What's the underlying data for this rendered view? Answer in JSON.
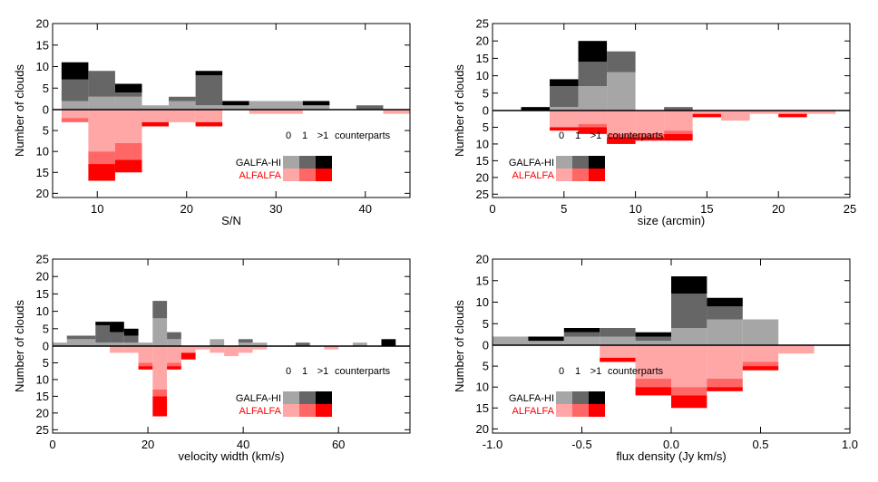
{
  "colors": {
    "galfa": [
      "#a6a6a6",
      "#666666",
      "#000000"
    ],
    "alfalfa": [
      "#ffa6a6",
      "#ff6666",
      "#ff0000"
    ],
    "alfalfa_label": "#ff0000"
  },
  "legend": {
    "header": [
      "0",
      "1",
      ">1"
    ],
    "counterparts": "counterparts",
    "galfa": "GALFA-HI",
    "alfalfa": "ALFALFA"
  },
  "chart_data": [
    {
      "type": "bar",
      "name": "sn",
      "xlabel": "S/N",
      "ylabel": "Number of clouds",
      "xlim": [
        5,
        45
      ],
      "xticks": [
        10,
        20,
        30,
        40
      ],
      "ylim_up": [
        0,
        20
      ],
      "ylim_down": [
        0,
        21
      ],
      "yticks_up": [
        5,
        10,
        15,
        20
      ],
      "yticks_down": [
        5,
        10,
        15,
        20
      ],
      "galfa_bins": [
        [
          6,
          9,
          [
            2,
            5,
            4
          ]
        ],
        [
          9,
          12,
          [
            3,
            6,
            0
          ]
        ],
        [
          12,
          15,
          [
            3,
            1,
            2
          ]
        ],
        [
          15,
          18,
          [
            1,
            0,
            0
          ]
        ],
        [
          18,
          21,
          [
            2,
            1,
            0
          ]
        ],
        [
          21,
          24,
          [
            1,
            7,
            1
          ]
        ],
        [
          24,
          27,
          [
            1,
            0,
            1
          ]
        ],
        [
          27,
          33,
          [
            2,
            0,
            0
          ]
        ],
        [
          33,
          36,
          [
            1,
            0,
            1
          ]
        ],
        [
          36,
          39,
          [
            0,
            0,
            0
          ]
        ],
        [
          39,
          42,
          [
            0,
            1,
            0
          ]
        ],
        [
          42,
          45,
          [
            0,
            0,
            0
          ]
        ]
      ],
      "alfalfa_bins": [
        [
          6,
          9,
          [
            2,
            1,
            0
          ]
        ],
        [
          9,
          12,
          [
            10,
            3,
            4
          ]
        ],
        [
          12,
          15,
          [
            8,
            4,
            3
          ]
        ],
        [
          15,
          18,
          [
            3,
            0,
            1
          ]
        ],
        [
          18,
          21,
          [
            3,
            0,
            0
          ]
        ],
        [
          21,
          24,
          [
            3,
            0,
            1
          ]
        ],
        [
          24,
          27,
          [
            0,
            0,
            0
          ]
        ],
        [
          27,
          33,
          [
            1,
            0,
            0
          ]
        ],
        [
          33,
          36,
          [
            0,
            0,
            0
          ]
        ],
        [
          36,
          39,
          [
            0,
            0,
            0
          ]
        ],
        [
          39,
          42,
          [
            0,
            0,
            0
          ]
        ],
        [
          42,
          45,
          [
            1,
            0,
            0
          ]
        ]
      ]
    },
    {
      "type": "bar",
      "name": "size",
      "xlabel": "size (arcmin)",
      "ylabel": "Number of clouds",
      "xlim": [
        0,
        25
      ],
      "xticks": [
        0,
        5,
        10,
        15,
        20,
        25
      ],
      "ylim_up": [
        0,
        25
      ],
      "ylim_down": [
        0,
        26
      ],
      "yticks_up": [
        5,
        10,
        15,
        20,
        25
      ],
      "yticks_down": [
        5,
        10,
        15,
        20,
        25
      ],
      "galfa_bins": [
        [
          2,
          4,
          [
            0,
            0,
            1
          ]
        ],
        [
          4,
          6,
          [
            1,
            6,
            2
          ]
        ],
        [
          6,
          8,
          [
            7,
            7,
            6
          ]
        ],
        [
          8,
          10,
          [
            11,
            6,
            0
          ]
        ],
        [
          12,
          14,
          [
            0,
            1,
            0
          ]
        ]
      ],
      "alfalfa_bins": [
        [
          4,
          6,
          [
            5,
            0,
            1
          ]
        ],
        [
          6,
          8,
          [
            4,
            1,
            2
          ]
        ],
        [
          8,
          10,
          [
            7,
            1,
            2
          ]
        ],
        [
          10,
          12,
          [
            7,
            1,
            1
          ]
        ],
        [
          12,
          14,
          [
            6,
            1,
            2
          ]
        ],
        [
          14,
          16,
          [
            1,
            0,
            1
          ]
        ],
        [
          16,
          18,
          [
            3,
            0,
            0
          ]
        ],
        [
          18,
          20,
          [
            1,
            0,
            0
          ]
        ],
        [
          20,
          22,
          [
            1,
            0,
            1
          ]
        ],
        [
          22,
          24,
          [
            1,
            0,
            0
          ]
        ]
      ]
    },
    {
      "type": "bar",
      "name": "velocity",
      "xlabel": "velocity width (km/s)",
      "ylabel": "Number of clouds",
      "xlim": [
        0,
        75
      ],
      "xticks": [
        0,
        20,
        40,
        60
      ],
      "ylim_up": [
        0,
        25
      ],
      "ylim_down": [
        0,
        26
      ],
      "yticks_up": [
        5,
        10,
        15,
        20,
        25
      ],
      "yticks_down": [
        5,
        10,
        15,
        20,
        25
      ],
      "galfa_bins": [
        [
          0,
          3,
          [
            1,
            0,
            0
          ]
        ],
        [
          3,
          9,
          [
            2,
            1,
            0
          ]
        ],
        [
          9,
          12,
          [
            1,
            5,
            1
          ]
        ],
        [
          12,
          15,
          [
            1,
            3,
            3
          ]
        ],
        [
          15,
          18,
          [
            1,
            2,
            2
          ]
        ],
        [
          18,
          21,
          [
            1,
            0,
            0
          ]
        ],
        [
          21,
          24,
          [
            8,
            5,
            0
          ]
        ],
        [
          24,
          27,
          [
            2,
            2,
            0
          ]
        ],
        [
          30,
          33,
          [
            0,
            0,
            0
          ]
        ],
        [
          33,
          36,
          [
            2,
            0,
            0
          ]
        ],
        [
          36,
          39,
          [
            0,
            0,
            0
          ]
        ],
        [
          39,
          42,
          [
            1,
            1,
            0
          ]
        ],
        [
          42,
          45,
          [
            1,
            0,
            0
          ]
        ],
        [
          48,
          51,
          [
            0,
            0,
            0
          ]
        ],
        [
          51,
          54,
          [
            0,
            1,
            0
          ]
        ],
        [
          54,
          57,
          [
            0,
            0,
            0
          ]
        ],
        [
          60,
          63,
          [
            0,
            0,
            0
          ]
        ],
        [
          63,
          66,
          [
            1,
            0,
            0
          ]
        ],
        [
          66,
          69,
          [
            0,
            0,
            0
          ]
        ],
        [
          69,
          72,
          [
            0,
            0,
            2
          ]
        ]
      ],
      "alfalfa_bins": [
        [
          12,
          15,
          [
            2,
            0,
            0
          ]
        ],
        [
          15,
          18,
          [
            2,
            0,
            0
          ]
        ],
        [
          18,
          21,
          [
            5,
            1,
            1
          ]
        ],
        [
          21,
          24,
          [
            13,
            2,
            6
          ]
        ],
        [
          24,
          27,
          [
            5,
            1,
            1
          ]
        ],
        [
          27,
          30,
          [
            2,
            0,
            2
          ]
        ],
        [
          30,
          33,
          [
            1,
            0,
            0
          ]
        ],
        [
          33,
          36,
          [
            2,
            0,
            0
          ]
        ],
        [
          36,
          39,
          [
            3,
            0,
            0
          ]
        ],
        [
          39,
          42,
          [
            2,
            0,
            0
          ]
        ],
        [
          42,
          45,
          [
            1,
            0,
            0
          ]
        ],
        [
          57,
          60,
          [
            1,
            0,
            0
          ]
        ]
      ]
    },
    {
      "type": "bar",
      "name": "flux",
      "xlabel": "flux density (Jy km/s)",
      "ylabel": "Number of clouds",
      "xlim": [
        -1.0,
        1.0
      ],
      "xticks": [
        -1.0,
        -0.5,
        0.0,
        0.5,
        1.0
      ],
      "xtick_labels": [
        "-1.0",
        "-0.5",
        "0.0",
        "0.5",
        "1.0"
      ],
      "ylim_up": [
        0,
        20
      ],
      "ylim_down": [
        0,
        21
      ],
      "yticks_up": [
        5,
        10,
        15,
        20
      ],
      "yticks_down": [
        5,
        10,
        15,
        20
      ],
      "galfa_bins": [
        [
          -1.0,
          -0.8,
          [
            2,
            0,
            0
          ]
        ],
        [
          -0.8,
          -0.6,
          [
            1,
            0,
            1
          ]
        ],
        [
          -0.6,
          -0.4,
          [
            2,
            1,
            1
          ]
        ],
        [
          -0.4,
          -0.2,
          [
            2,
            2,
            0
          ]
        ],
        [
          -0.2,
          0.0,
          [
            1,
            1,
            1
          ]
        ],
        [
          0.0,
          0.2,
          [
            4,
            8,
            4
          ]
        ],
        [
          0.2,
          0.4,
          [
            6,
            3,
            2
          ]
        ],
        [
          0.4,
          0.6,
          [
            6,
            0,
            0
          ]
        ],
        [
          0.6,
          0.8,
          [
            0,
            0,
            0
          ]
        ],
        [
          0.8,
          0.9,
          [
            0,
            0,
            0
          ]
        ]
      ],
      "alfalfa_bins": [
        [
          -0.4,
          -0.2,
          [
            3,
            0,
            1
          ]
        ],
        [
          -0.2,
          0.0,
          [
            8,
            2,
            2
          ]
        ],
        [
          0.0,
          0.2,
          [
            10,
            2,
            3
          ]
        ],
        [
          0.2,
          0.4,
          [
            8,
            2,
            1
          ]
        ],
        [
          0.4,
          0.6,
          [
            4,
            1,
            1
          ]
        ],
        [
          0.6,
          0.8,
          [
            2,
            0,
            0
          ]
        ]
      ]
    }
  ]
}
